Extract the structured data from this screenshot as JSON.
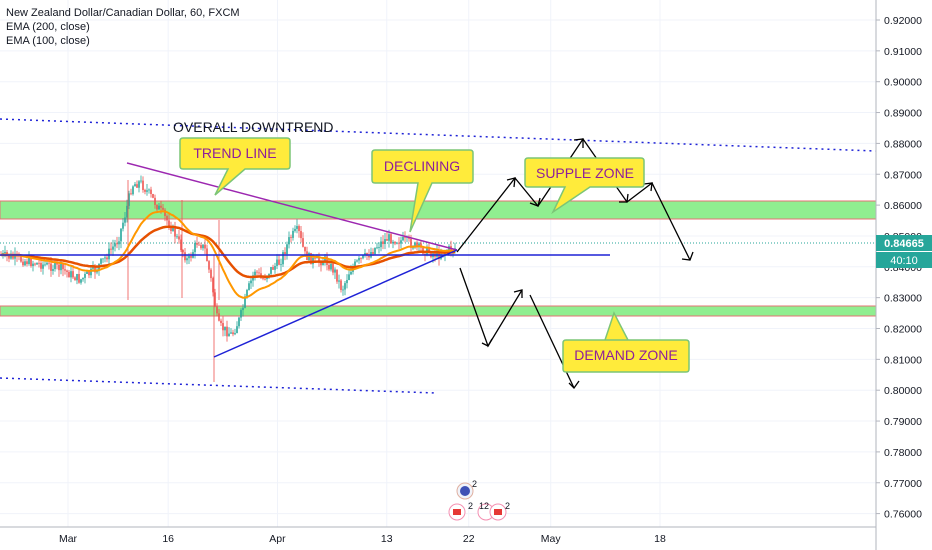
{
  "header": {
    "symbol_line": "New Zealand Dollar/Canadian Dollar, 60, FXCM",
    "indicator_1": "EMA (200, close)",
    "indicator_2": "EMA (100, close)"
  },
  "price_axis": {
    "ticks": [
      "0.92000",
      "0.91000",
      "0.90000",
      "0.89000",
      "0.88000",
      "0.87000",
      "0.86000",
      "0.85000",
      "0.84000",
      "0.83000",
      "0.82000",
      "0.81000",
      "0.80000",
      "0.79000",
      "0.78000",
      "0.77000",
      "0.76000"
    ],
    "last_price": "0.84665",
    "countdown": "40:10",
    "last_price_color": "#26a69a"
  },
  "time_axis": {
    "ticks": [
      {
        "label": "Mar",
        "day": 5
      },
      {
        "label": "16",
        "day": 16
      },
      {
        "label": "Apr",
        "day": 28
      },
      {
        "label": "13",
        "day": 40
      },
      {
        "label": "22",
        "day": 49
      },
      {
        "label": "May",
        "day": 58
      },
      {
        "label": "18",
        "day": 70
      }
    ]
  },
  "annotations": {
    "overall_downtrend": "OVERALL DOWNTREND",
    "trend_line": "TREND LINE",
    "declining": "DECLINING",
    "supple_zone": "SUPPLE ZONE",
    "demand_zone": "DEMAND ZONE"
  },
  "event_badges": {
    "top_count": "2",
    "bottom_counts": [
      "2",
      "12",
      "2"
    ]
  },
  "colors": {
    "zone_fill": "#90ee90",
    "zone_border": "#e57373",
    "ema200": "#f57c00",
    "ema100": "#ff9800",
    "trend_line_upper": "#9c27b0",
    "trend_line_lower": "#1e22d6",
    "callout_fill": "#ffeb3b",
    "callout_border": "#7cc576",
    "callout_text": "#8e1f9b",
    "dotted_line": "#1e22d6"
  },
  "chart_data": {
    "type": "candlestick",
    "title": "New Zealand Dollar/Canadian Dollar, 60, FXCM",
    "ylim": [
      0.755,
      0.925
    ],
    "series": [
      {
        "name": "EMA (200, close)"
      },
      {
        "name": "EMA (100, close)"
      }
    ],
    "zones": [
      {
        "name": "SUPPLE ZONE",
        "from": 0.8555,
        "to": 0.861
      },
      {
        "name": "DEMAND ZONE",
        "from": 0.824,
        "to": 0.827
      }
    ],
    "horizontal_level": 0.8437,
    "last_price": 0.84665
  }
}
